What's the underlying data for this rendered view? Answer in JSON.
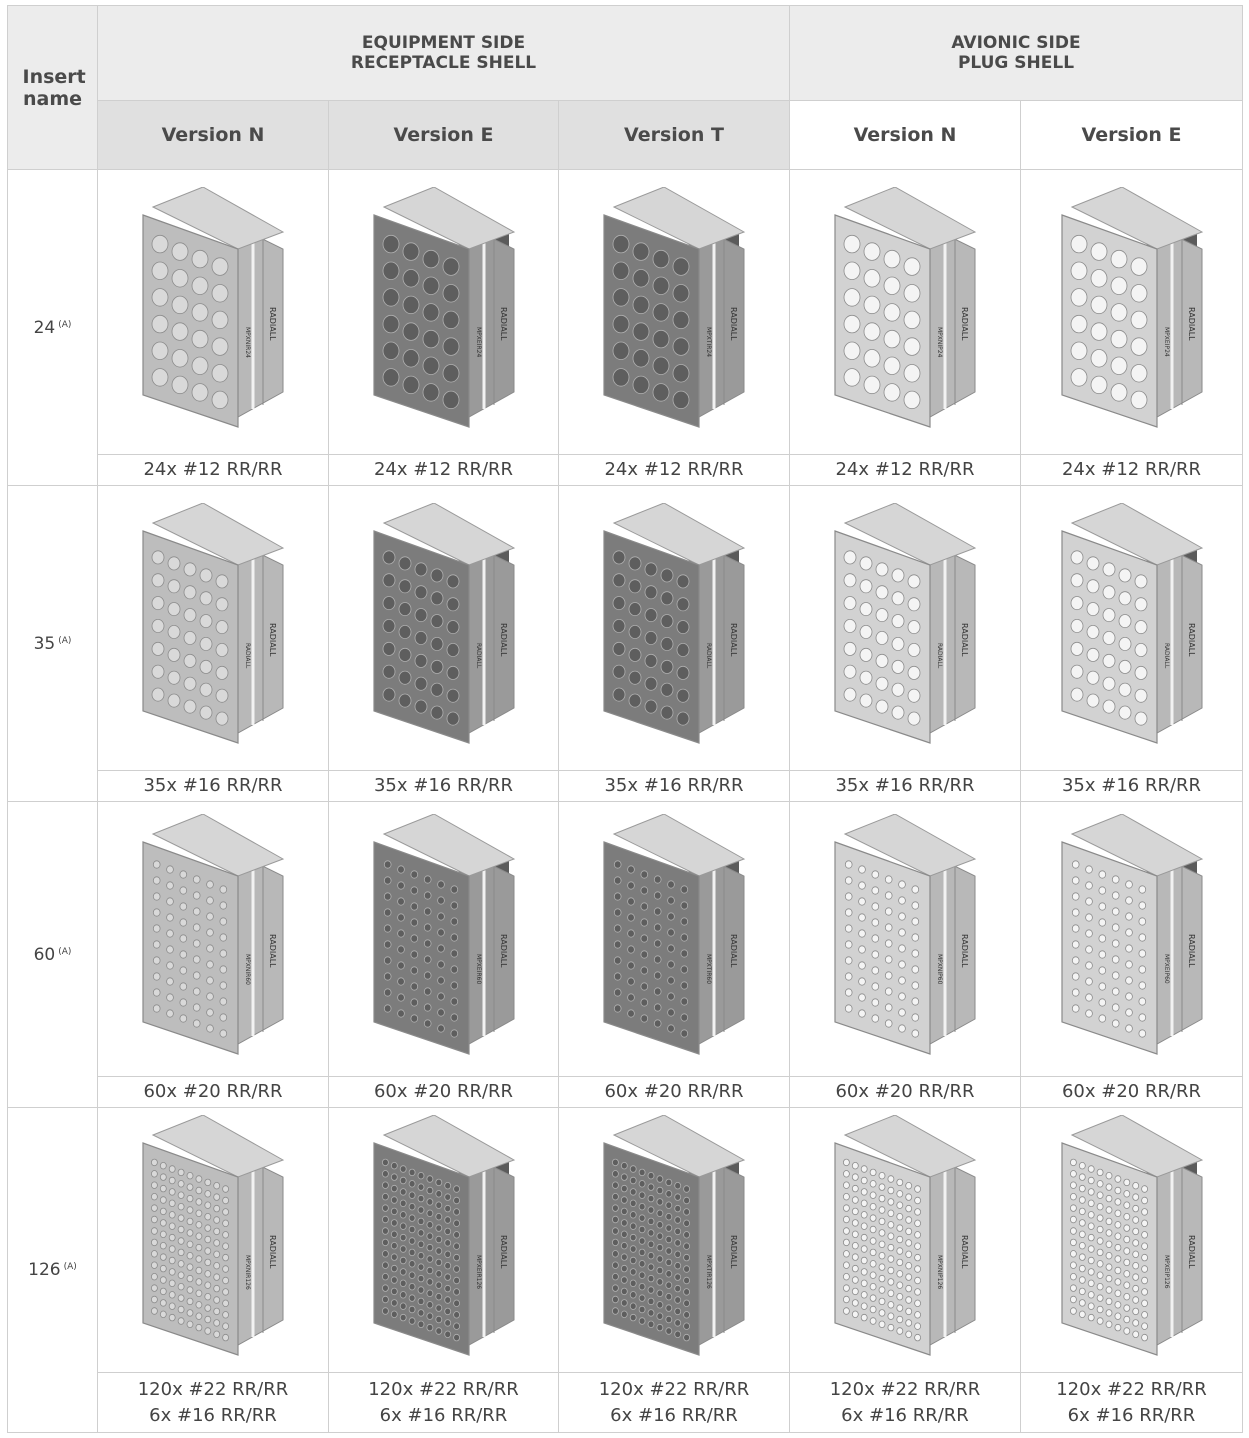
{
  "header": {
    "insert_name": "Insert name",
    "groups": [
      {
        "line1": "EQUIPMENT SIDE",
        "line2": "RECEPTACLE SHELL"
      },
      {
        "line1": "AVIONIC SIDE",
        "line2": "PLUG SHELL"
      }
    ],
    "versions": [
      "Version N",
      "Version E",
      "Version T",
      "Version N",
      "Version E"
    ]
  },
  "rows": [
    {
      "name": "24",
      "note": "(A)",
      "captions": [
        [
          "24x #12 RR/RR"
        ],
        [
          "24x #12 RR/RR"
        ],
        [
          "24x #12 RR/RR"
        ],
        [
          "24x #12 RR/RR"
        ],
        [
          "24x #12 RR/RR"
        ]
      ],
      "labels": [
        "MPXNIR24",
        "MPXEIR24",
        "MPXTIR24",
        "MPXNIP24",
        "MPXEIP24"
      ]
    },
    {
      "name": "35",
      "note": "(A)",
      "captions": [
        [
          "35x #16 RR/RR"
        ],
        [
          "35x #16 RR/RR"
        ],
        [
          "35x #16 RR/RR"
        ],
        [
          "35x #16 RR/RR"
        ],
        [
          "35x #16 RR/RR"
        ]
      ],
      "labels": [
        "RADIALL",
        "RADIALL",
        "RADIALL",
        "RADIALL",
        "RADIALL"
      ]
    },
    {
      "name": "60",
      "note": "(A)",
      "captions": [
        [
          "60x #20 RR/RR"
        ],
        [
          "60x #20 RR/RR"
        ],
        [
          "60x #20 RR/RR"
        ],
        [
          "60x #20 RR/RR"
        ],
        [
          "60x #20 RR/RR"
        ]
      ],
      "labels": [
        "MPXNIR60",
        "MPXEIR60",
        "MPXTIR60",
        "MPXNIP60",
        "MPXEIP60"
      ]
    },
    {
      "name": "126",
      "note": "(A)",
      "captions": [
        [
          "120x #22 RR/RR",
          "6x #16 RR/RR"
        ],
        [
          "120x #22 RR/RR",
          "6x #16 RR/RR"
        ],
        [
          "120x #22 RR/RR",
          "6x #16 RR/RR"
        ],
        [
          "120x #22 RR/RR",
          "6x #16 RR/RR"
        ],
        [
          "120x #22 RR/RR",
          "6x #16 RR/RR"
        ]
      ],
      "labels": [
        "MPXNIR126",
        "MPXEIR126",
        "MPXTIR126",
        "MPXNIP126",
        "MPXEIP126"
      ]
    }
  ],
  "brand": "RADIALL"
}
